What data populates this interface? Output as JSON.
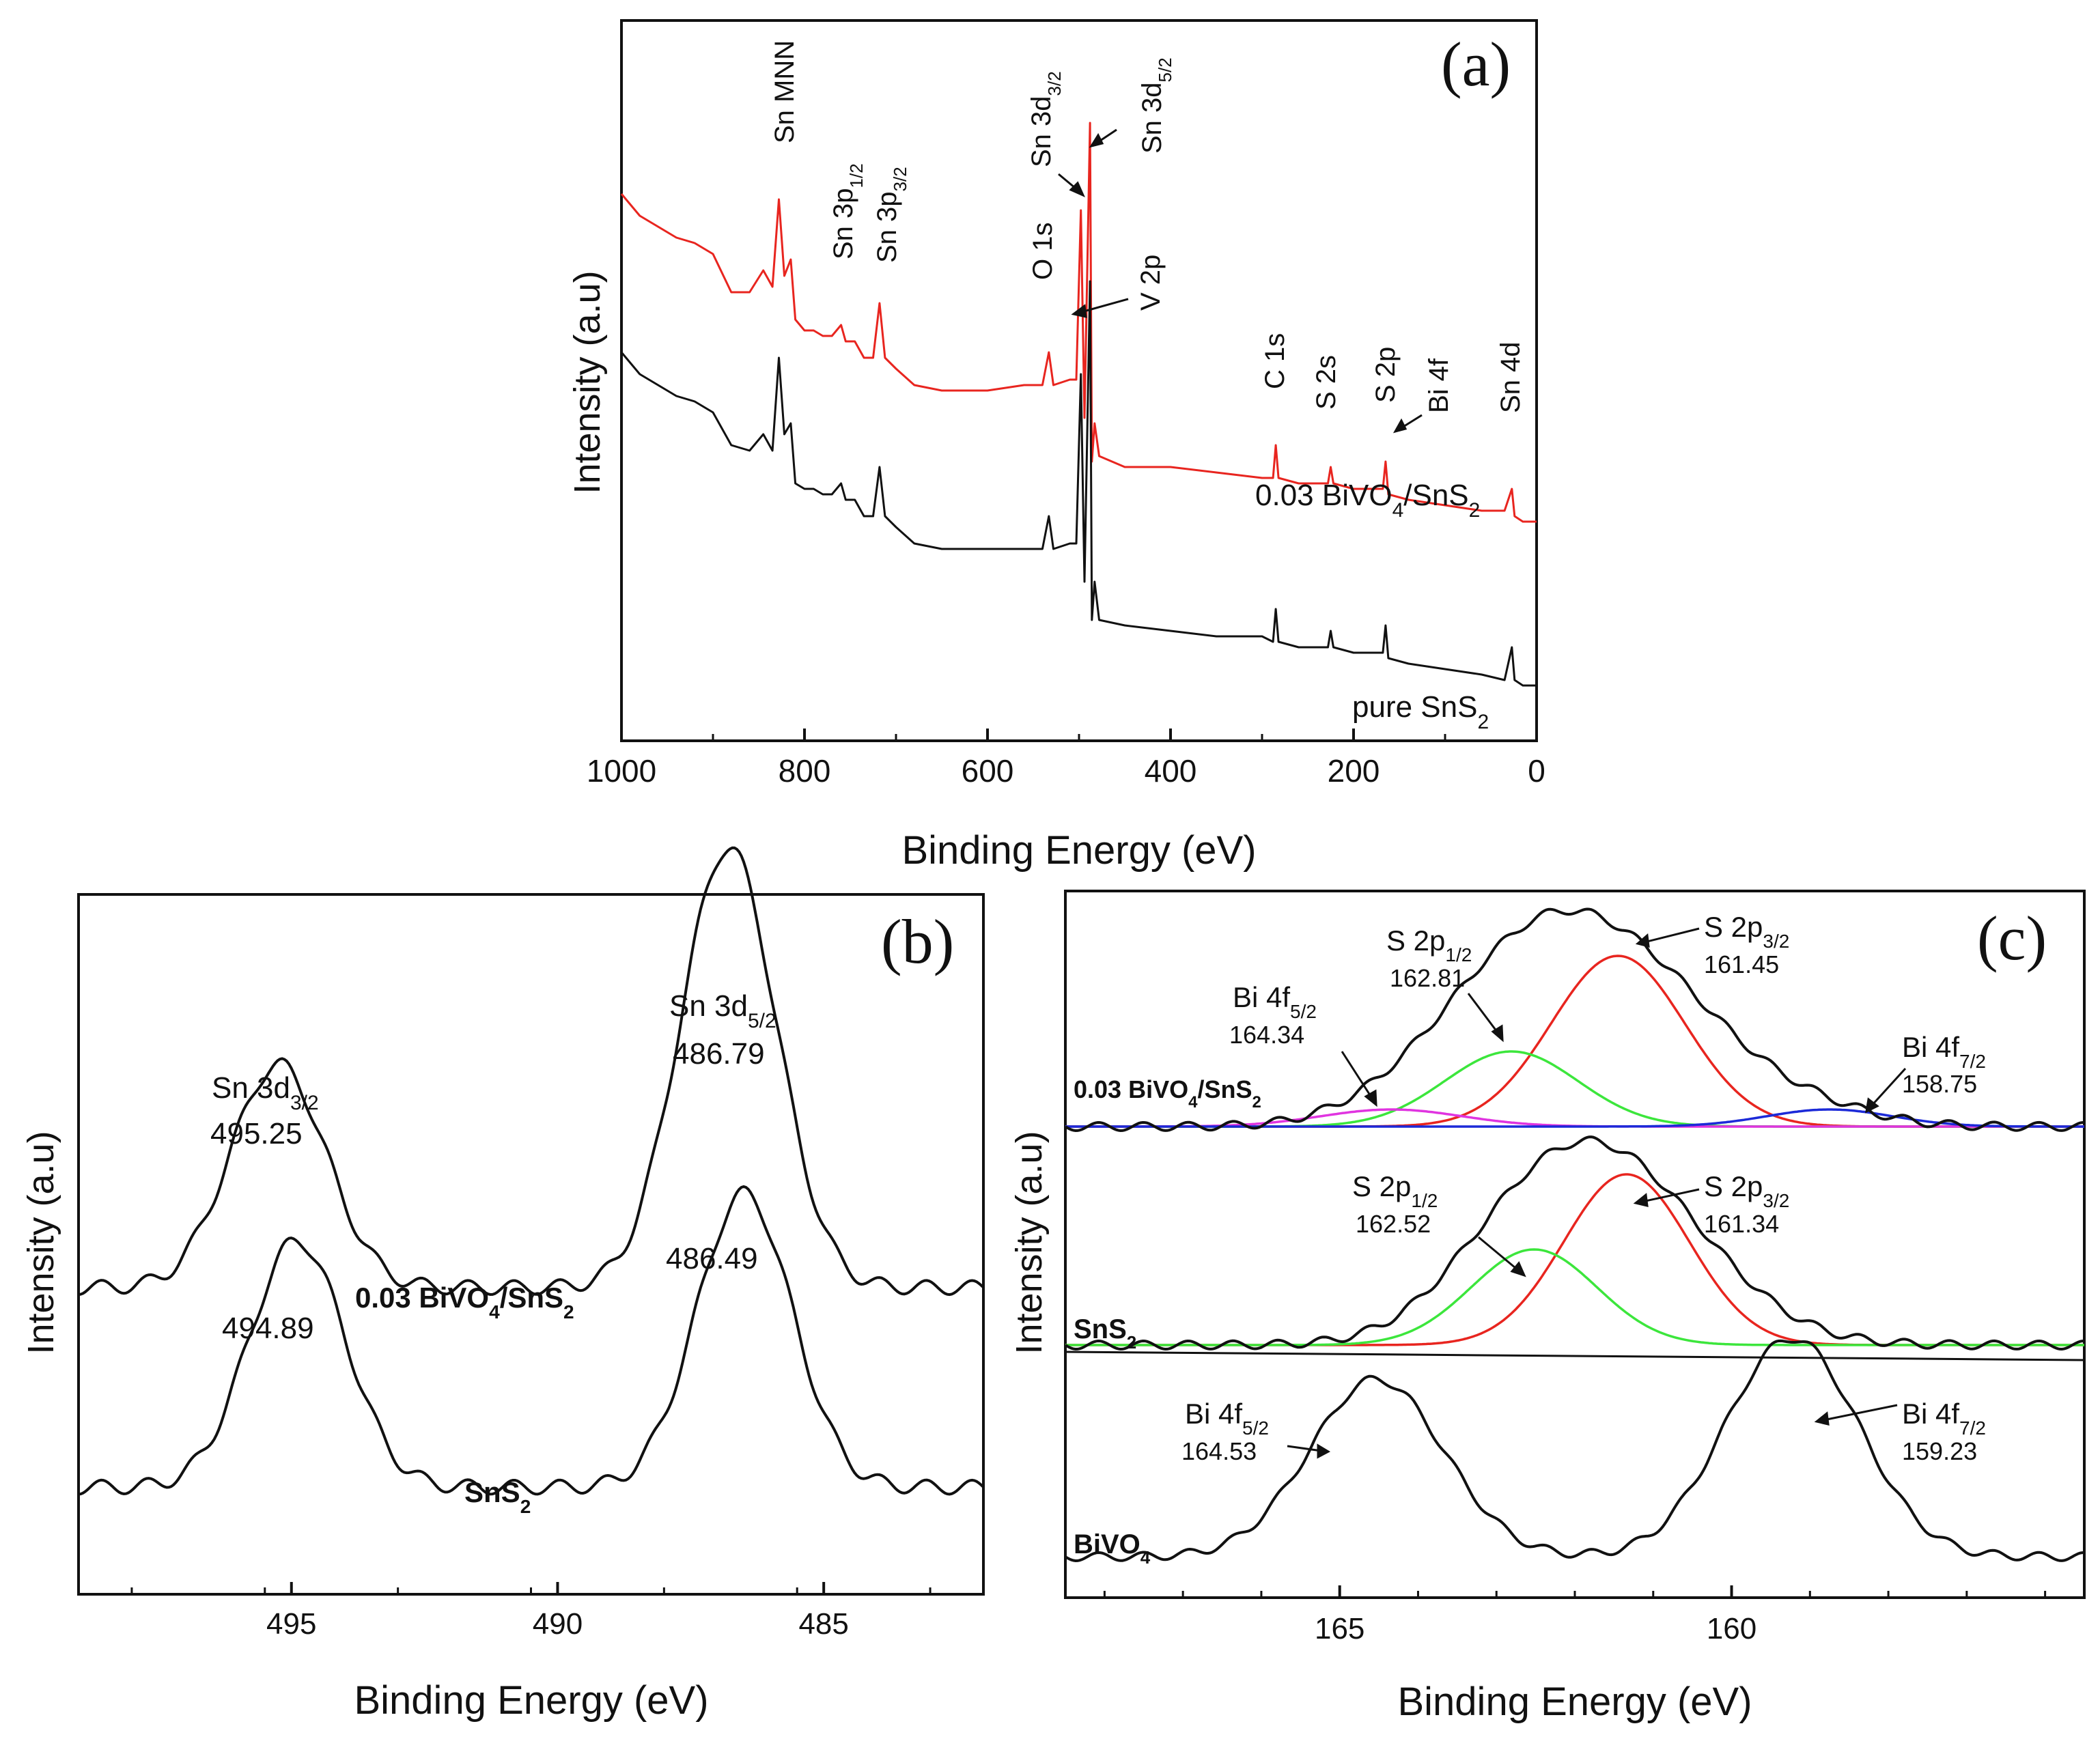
{
  "colors": {
    "red": "#e8251f",
    "black": "#111111",
    "green": "#3ce63c",
    "magenta": "#e034e0",
    "blue": "#1c2ad8"
  },
  "chart_data": [
    {
      "panel": "a",
      "label": "(a)",
      "type": "line",
      "xlabel": "Binding Energy (eV)",
      "ylabel": "Intensity (a.u)",
      "xlim": [
        1000,
        0
      ],
      "xticks": [
        "1000",
        "800",
        "600",
        "400",
        "200",
        "0"
      ],
      "series": [
        {
          "name": "0.03 BiVO4/SnS2",
          "color": "red",
          "points": [
            [
              1000,
              0.87
            ],
            [
              980,
              0.83
            ],
            [
              960,
              0.81
            ],
            [
              940,
              0.79
            ],
            [
              920,
              0.78
            ],
            [
              900,
              0.76
            ],
            [
              880,
              0.69
            ],
            [
              860,
              0.69
            ],
            [
              845,
              0.73
            ],
            [
              835,
              0.7
            ],
            [
              828,
              0.86
            ],
            [
              822,
              0.72
            ],
            [
              815,
              0.75
            ],
            [
              810,
              0.64
            ],
            [
              800,
              0.62
            ],
            [
              790,
              0.62
            ],
            [
              780,
              0.61
            ],
            [
              770,
              0.61
            ],
            [
              760,
              0.63
            ],
            [
              755,
              0.6
            ],
            [
              745,
              0.6
            ],
            [
              735,
              0.57
            ],
            [
              725,
              0.57
            ],
            [
              718,
              0.67
            ],
            [
              712,
              0.57
            ],
            [
              700,
              0.55
            ],
            [
              680,
              0.52
            ],
            [
              650,
              0.51
            ],
            [
              600,
              0.51
            ],
            [
              560,
              0.52
            ],
            [
              540,
              0.52
            ],
            [
              533,
              0.58
            ],
            [
              528,
              0.52
            ],
            [
              510,
              0.53
            ],
            [
              503,
              0.53
            ],
            [
              498,
              0.84
            ],
            [
              494,
              0.46
            ],
            [
              488,
              1.0
            ],
            [
              486,
              0.38
            ],
            [
              483,
              0.45
            ],
            [
              478,
              0.39
            ],
            [
              450,
              0.37
            ],
            [
              400,
              0.37
            ],
            [
              350,
              0.36
            ],
            [
              300,
              0.35
            ],
            [
              288,
              0.35
            ],
            [
              285,
              0.41
            ],
            [
              282,
              0.35
            ],
            [
              260,
              0.34
            ],
            [
              228,
              0.34
            ],
            [
              225,
              0.37
            ],
            [
              222,
              0.34
            ],
            [
              200,
              0.33
            ],
            [
              168,
              0.33
            ],
            [
              165,
              0.38
            ],
            [
              162,
              0.32
            ],
            [
              140,
              0.31
            ],
            [
              100,
              0.3
            ],
            [
              60,
              0.29
            ],
            [
              35,
              0.29
            ],
            [
              27,
              0.33
            ],
            [
              24,
              0.28
            ],
            [
              15,
              0.27
            ],
            [
              0,
              0.27
            ]
          ]
        },
        {
          "name": "pure SnS2",
          "color": "black",
          "points": [
            [
              1000,
              0.58
            ],
            [
              980,
              0.54
            ],
            [
              960,
              0.52
            ],
            [
              940,
              0.5
            ],
            [
              920,
              0.49
            ],
            [
              900,
              0.47
            ],
            [
              880,
              0.41
            ],
            [
              860,
              0.4
            ],
            [
              845,
              0.43
            ],
            [
              835,
              0.4
            ],
            [
              828,
              0.57
            ],
            [
              822,
              0.43
            ],
            [
              815,
              0.45
            ],
            [
              810,
              0.34
            ],
            [
              800,
              0.33
            ],
            [
              790,
              0.33
            ],
            [
              780,
              0.32
            ],
            [
              770,
              0.32
            ],
            [
              760,
              0.34
            ],
            [
              755,
              0.31
            ],
            [
              745,
              0.31
            ],
            [
              735,
              0.28
            ],
            [
              725,
              0.28
            ],
            [
              718,
              0.37
            ],
            [
              712,
              0.28
            ],
            [
              700,
              0.26
            ],
            [
              680,
              0.23
            ],
            [
              650,
              0.22
            ],
            [
              600,
              0.22
            ],
            [
              560,
              0.22
            ],
            [
              540,
              0.22
            ],
            [
              533,
              0.28
            ],
            [
              528,
              0.22
            ],
            [
              510,
              0.23
            ],
            [
              503,
              0.23
            ],
            [
              498,
              0.54
            ],
            [
              494,
              0.16
            ],
            [
              488,
              0.71
            ],
            [
              486,
              0.09
            ],
            [
              483,
              0.16
            ],
            [
              478,
              0.09
            ],
            [
              450,
              0.08
            ],
            [
              400,
              0.07
            ],
            [
              350,
              0.06
            ],
            [
              300,
              0.06
            ],
            [
              288,
              0.05
            ],
            [
              285,
              0.11
            ],
            [
              282,
              0.05
            ],
            [
              260,
              0.04
            ],
            [
              228,
              0.04
            ],
            [
              225,
              0.07
            ],
            [
              222,
              0.04
            ],
            [
              200,
              0.03
            ],
            [
              168,
              0.03
            ],
            [
              165,
              0.08
            ],
            [
              162,
              0.02
            ],
            [
              140,
              0.01
            ],
            [
              100,
              0.0
            ],
            [
              60,
              -0.01
            ],
            [
              35,
              -0.02
            ],
            [
              27,
              0.04
            ],
            [
              24,
              -0.02
            ],
            [
              15,
              -0.03
            ],
            [
              0,
              -0.03
            ]
          ]
        }
      ],
      "annotations": [
        {
          "main": "Sn MNN",
          "sub": ""
        },
        {
          "main": "Sn 3p",
          "sub": "1/2"
        },
        {
          "main": "Sn 3p",
          "sub": "3/2"
        },
        {
          "main": "O 1s",
          "sub": ""
        },
        {
          "main": "Sn 3d",
          "sub": "3/2"
        },
        {
          "main": "Sn 3d",
          "sub": "5/2"
        },
        {
          "main": "V 2p",
          "sub": ""
        },
        {
          "main": "C 1s",
          "sub": ""
        },
        {
          "main": "S 2s",
          "sub": ""
        },
        {
          "main": "S 2p",
          "sub": ""
        },
        {
          "main": "Bi 4f",
          "sub": ""
        },
        {
          "main": "Sn 4d",
          "sub": ""
        }
      ],
      "curve_labels": [
        {
          "main": "0.03 BiVO",
          "sub1": "4",
          "mid": "/SnS",
          "sub2": "2"
        },
        {
          "main": "pure SnS",
          "sub1": "2"
        }
      ]
    },
    {
      "panel": "b",
      "label": "(b)",
      "type": "line",
      "xlabel": "Binding Energy (eV)",
      "ylabel": "Intensity (a.u)",
      "xlim": [
        499,
        482
      ],
      "xticks": [
        "495",
        "490",
        "485"
      ],
      "series": [
        {
          "name": "0.03 BiVO4/SnS2",
          "color": "black",
          "baseline": 0.47,
          "peaks": [
            {
              "center": 495.25,
              "height": 0.38
            },
            {
              "center": 486.79,
              "height": 0.75
            }
          ]
        },
        {
          "name": "SnS2",
          "color": "black",
          "baseline": 0.13,
          "peaks": [
            {
              "center": 494.89,
              "height": 0.42
            },
            {
              "center": 486.49,
              "height": 0.5
            }
          ]
        }
      ],
      "peak_labels": [
        {
          "main": "Sn 3d",
          "sub": "3/2",
          "value": "495.25"
        },
        {
          "main": "Sn 3d",
          "sub": "5/2",
          "value": "486.79"
        },
        {
          "value": "494.89"
        },
        {
          "value": "486.49"
        }
      ],
      "curve_labels": [
        {
          "main": "0.03 BiVO",
          "sub1": "4",
          "mid": "/SnS",
          "sub2": "2"
        },
        {
          "main": "SnS",
          "sub1": "2"
        }
      ]
    },
    {
      "panel": "c",
      "label": "(c)",
      "type": "line",
      "xlabel": "Binding Energy (eV)",
      "ylabel": "Intensity (a.u)",
      "xlim": [
        168.5,
        155.5
      ],
      "xticks": [
        "165",
        "160"
      ],
      "series": [
        {
          "name": "0.03 BiVO4/SnS2",
          "color": "black",
          "baseline": 0.68,
          "peaks": [
            {
              "center": 161.6,
              "height": 0.26,
              "width": 1.4
            },
            {
              "center": 162.9,
              "height": 0.1,
              "width": 1.0
            },
            {
              "center": 164.34,
              "height": 0.015,
              "width": 0.8
            },
            {
              "center": 158.75,
              "height": 0.01,
              "width": 0.7
            }
          ]
        },
        {
          "name": "0.03 fit S 2p3/2",
          "color": "red",
          "baseline": 0.68,
          "peaks": [
            {
              "center": 161.45,
              "height": 0.25,
              "width": 0.85
            }
          ]
        },
        {
          "name": "0.03 fit S 2p1/2",
          "color": "green",
          "baseline": 0.68,
          "peaks": [
            {
              "center": 162.81,
              "height": 0.11,
              "width": 0.85
            }
          ]
        },
        {
          "name": "0.03 fit Bi 4f5/2",
          "color": "magenta",
          "baseline": 0.68,
          "peaks": [
            {
              "center": 164.34,
              "height": 0.025,
              "width": 0.9
            }
          ]
        },
        {
          "name": "0.03 fit Bi 4f7/2",
          "color": "blue",
          "baseline": 0.68,
          "peaks": [
            {
              "center": 158.75,
              "height": 0.025,
              "width": 0.8
            }
          ]
        },
        {
          "name": "SnS2",
          "color": "black",
          "baseline": 0.36,
          "peaks": [
            {
              "center": 161.6,
              "height": 0.27,
              "width": 1.25
            },
            {
              "center": 162.8,
              "height": 0.06,
              "width": 0.9
            }
          ]
        },
        {
          "name": "SnS2 fit S 2p3/2",
          "color": "red",
          "baseline": 0.36,
          "peaks": [
            {
              "center": 161.34,
              "height": 0.25,
              "width": 0.8
            }
          ]
        },
        {
          "name": "SnS2 fit S 2p1/2",
          "color": "green",
          "baseline": 0.36,
          "peaks": [
            {
              "center": 162.52,
              "height": 0.14,
              "width": 0.8
            }
          ]
        },
        {
          "name": "BiVO4",
          "color": "black",
          "baseline": 0.05,
          "peaks": [
            {
              "center": 164.53,
              "height": 0.26,
              "width": 0.85
            },
            {
              "center": 159.23,
              "height": 0.32,
              "width": 0.85
            }
          ]
        }
      ],
      "peak_labels": [
        {
          "main": "Bi 4f",
          "sub": "5/2",
          "value": "164.34"
        },
        {
          "main": "S 2p",
          "sub": "1/2",
          "value": "162.81"
        },
        {
          "main": "S 2p",
          "sub": "3/2",
          "value": "161.45"
        },
        {
          "main": "Bi 4f",
          "sub": "7/2",
          "value": "158.75"
        },
        {
          "main": "S 2p",
          "sub": "1/2",
          "value": "162.52"
        },
        {
          "main": "S 2p",
          "sub": "3/2",
          "value": "161.34"
        },
        {
          "main": "Bi 4f",
          "sub": "5/2",
          "value": "164.53"
        },
        {
          "main": "Bi 4f",
          "sub": "7/2",
          "value": "159.23"
        }
      ],
      "curve_labels": [
        {
          "main": "0.03 BiVO",
          "sub1": "4",
          "mid": "/SnS",
          "sub2": "2"
        },
        {
          "main": "SnS",
          "sub1": "2"
        },
        {
          "main": "BiVO",
          "sub1": "4"
        }
      ]
    }
  ]
}
